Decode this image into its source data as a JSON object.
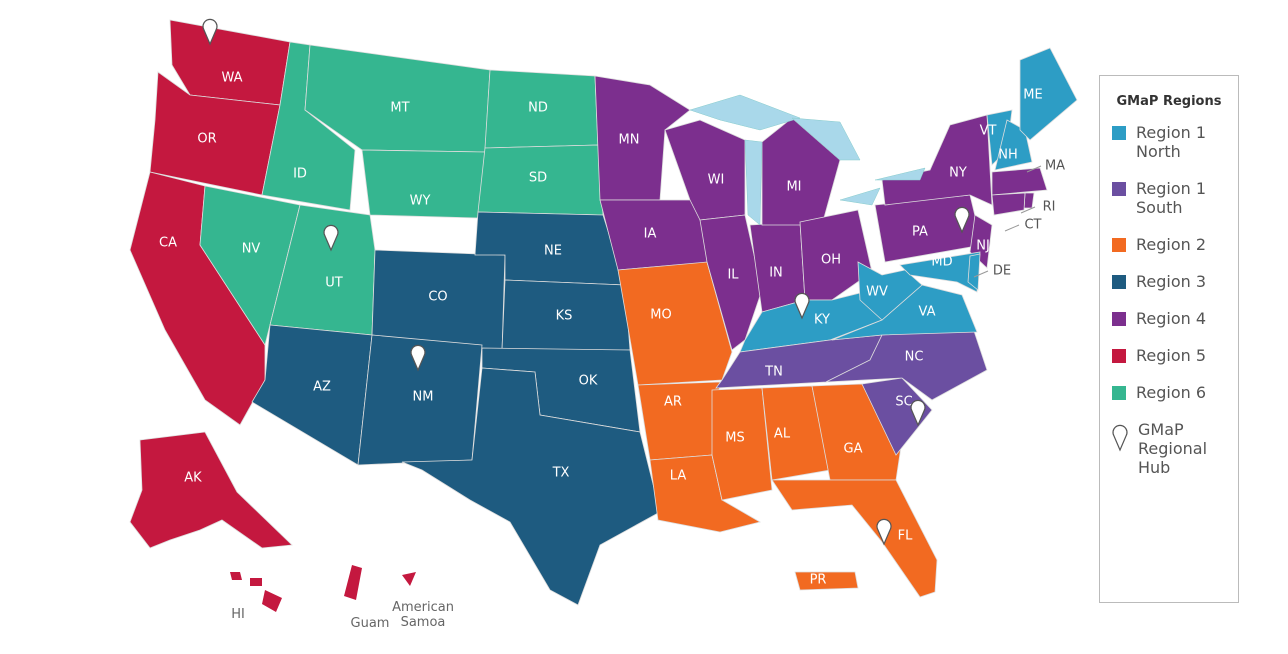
{
  "legend": {
    "title": "GMaP Regions",
    "items": [
      {
        "label": "Region 1 North",
        "color": "#2d9dc5"
      },
      {
        "label": "Region 1 South",
        "color": "#6b4fa1"
      },
      {
        "label": "Region 2",
        "color": "#f26a21"
      },
      {
        "label": "Region 3",
        "color": "#1e5b80"
      },
      {
        "label": "Region 4",
        "color": "#7c2f8e"
      },
      {
        "label": "Region 5",
        "color": "#c4183f"
      },
      {
        "label": "Region 6",
        "color": "#35b690"
      }
    ],
    "hub_label": "GMaP Regional Hub"
  },
  "state_labels": [
    "WA",
    "OR",
    "CA",
    "NV",
    "ID",
    "MT",
    "WY",
    "UT",
    "CO",
    "AZ",
    "NM",
    "ND",
    "SD",
    "NE",
    "KS",
    "OK",
    "TX",
    "MN",
    "IA",
    "MO",
    "AR",
    "LA",
    "WI",
    "IL",
    "IN",
    "MI",
    "OH",
    "KY",
    "TN",
    "MS",
    "AL",
    "GA",
    "FL",
    "SC",
    "NC",
    "VA",
    "WV",
    "PA",
    "NY",
    "NJ",
    "MD",
    "DE",
    "VT",
    "NH",
    "ME",
    "MA",
    "RI",
    "CT",
    "AK",
    "HI",
    "Guam",
    "American Samoa",
    "PR"
  ]
}
